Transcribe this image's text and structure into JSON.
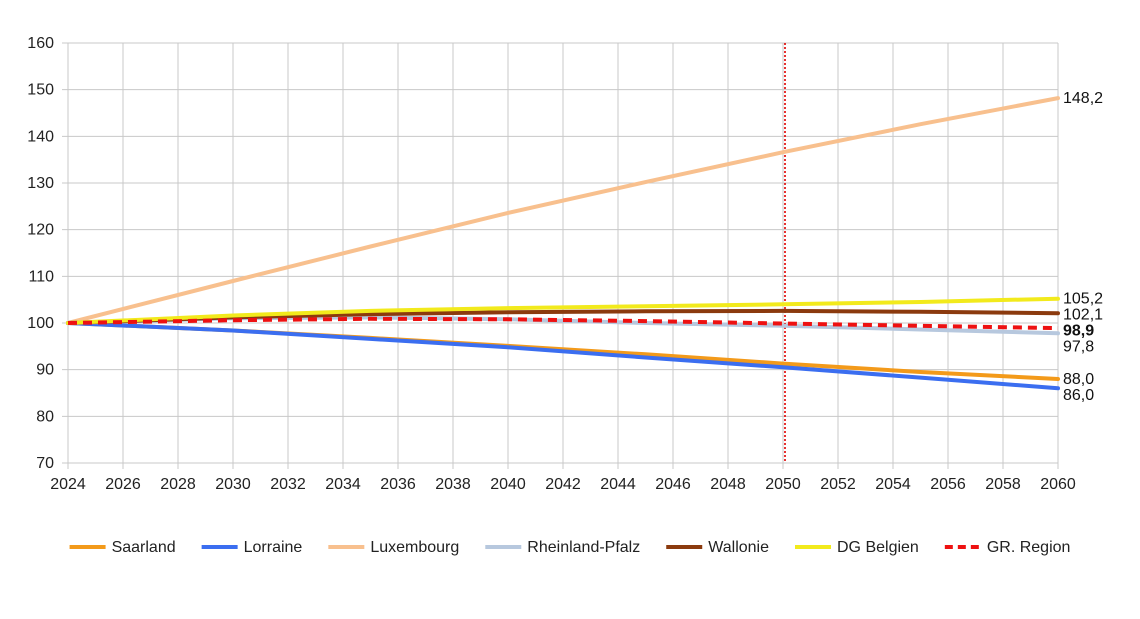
{
  "chart_data": {
    "type": "line",
    "title": "",
    "xlabel": "",
    "ylabel": "",
    "xlim": [
      2024,
      2060
    ],
    "ylim": [
      70,
      160
    ],
    "y_ticks": [
      70,
      80,
      90,
      100,
      110,
      120,
      130,
      140,
      150,
      160
    ],
    "x_ticks": [
      2024,
      2026,
      2028,
      2030,
      2032,
      2034,
      2036,
      2038,
      2040,
      2042,
      2044,
      2046,
      2048,
      2050,
      2052,
      2054,
      2056,
      2058,
      2060
    ],
    "grid": true,
    "legend_position": "bottom",
    "reference_line": {
      "x": 2050,
      "color": "#e00000",
      "style": "dotted"
    },
    "series": [
      {
        "name": "Saarland",
        "color": "#f39a1a",
        "dashed": false,
        "bold_label": false,
        "end_label": "88,0",
        "x": [
          2024,
          2030,
          2035,
          2040,
          2045,
          2050,
          2055,
          2060
        ],
        "y": [
          100,
          98.4,
          96.8,
          95.1,
          93.3,
          91.3,
          89.5,
          88.0
        ]
      },
      {
        "name": "Lorraine",
        "color": "#3b6ef0",
        "dashed": false,
        "bold_label": false,
        "end_label": "86,0",
        "x": [
          2024,
          2030,
          2035,
          2040,
          2045,
          2050,
          2055,
          2060
        ],
        "y": [
          100,
          98.4,
          96.6,
          94.8,
          92.6,
          90.5,
          88.3,
          86.0
        ]
      },
      {
        "name": "Luxembourg",
        "color": "#f8c08e",
        "dashed": false,
        "bold_label": false,
        "end_label": "148,2",
        "x": [
          2024,
          2030,
          2035,
          2040,
          2045,
          2050,
          2055,
          2060
        ],
        "y": [
          100,
          109.0,
          116.4,
          123.6,
          130.2,
          136.6,
          142.6,
          148.2
        ]
      },
      {
        "name": "Rheinland-Pfalz",
        "color": "#b7c8de",
        "dashed": false,
        "bold_label": false,
        "end_label": "97,8",
        "x": [
          2024,
          2030,
          2035,
          2040,
          2045,
          2050,
          2055,
          2060
        ],
        "y": [
          100,
          101.0,
          101.2,
          100.8,
          100.0,
          99.4,
          98.6,
          97.8
        ]
      },
      {
        "name": "Wallonie",
        "color": "#8b3a0e",
        "dashed": false,
        "bold_label": false,
        "end_label": "102,1",
        "x": [
          2024,
          2030,
          2035,
          2040,
          2045,
          2050,
          2055,
          2060
        ],
        "y": [
          100,
          101.2,
          101.9,
          102.3,
          102.5,
          102.6,
          102.4,
          102.1
        ]
      },
      {
        "name": "DG Belgien",
        "color": "#f2ea1c",
        "dashed": false,
        "bold_label": false,
        "end_label": "105,2",
        "x": [
          2024,
          2030,
          2035,
          2040,
          2045,
          2050,
          2055,
          2060
        ],
        "y": [
          100,
          101.6,
          102.6,
          103.2,
          103.6,
          104.0,
          104.5,
          105.2
        ]
      },
      {
        "name": "GR. Region",
        "color": "#ee1111",
        "dashed": true,
        "bold_label": true,
        "end_label": "98,9",
        "x": [
          2024,
          2030,
          2035,
          2040,
          2045,
          2050,
          2055,
          2060
        ],
        "y": [
          100,
          100.6,
          100.9,
          100.8,
          100.4,
          99.9,
          99.4,
          98.9
        ]
      }
    ]
  }
}
